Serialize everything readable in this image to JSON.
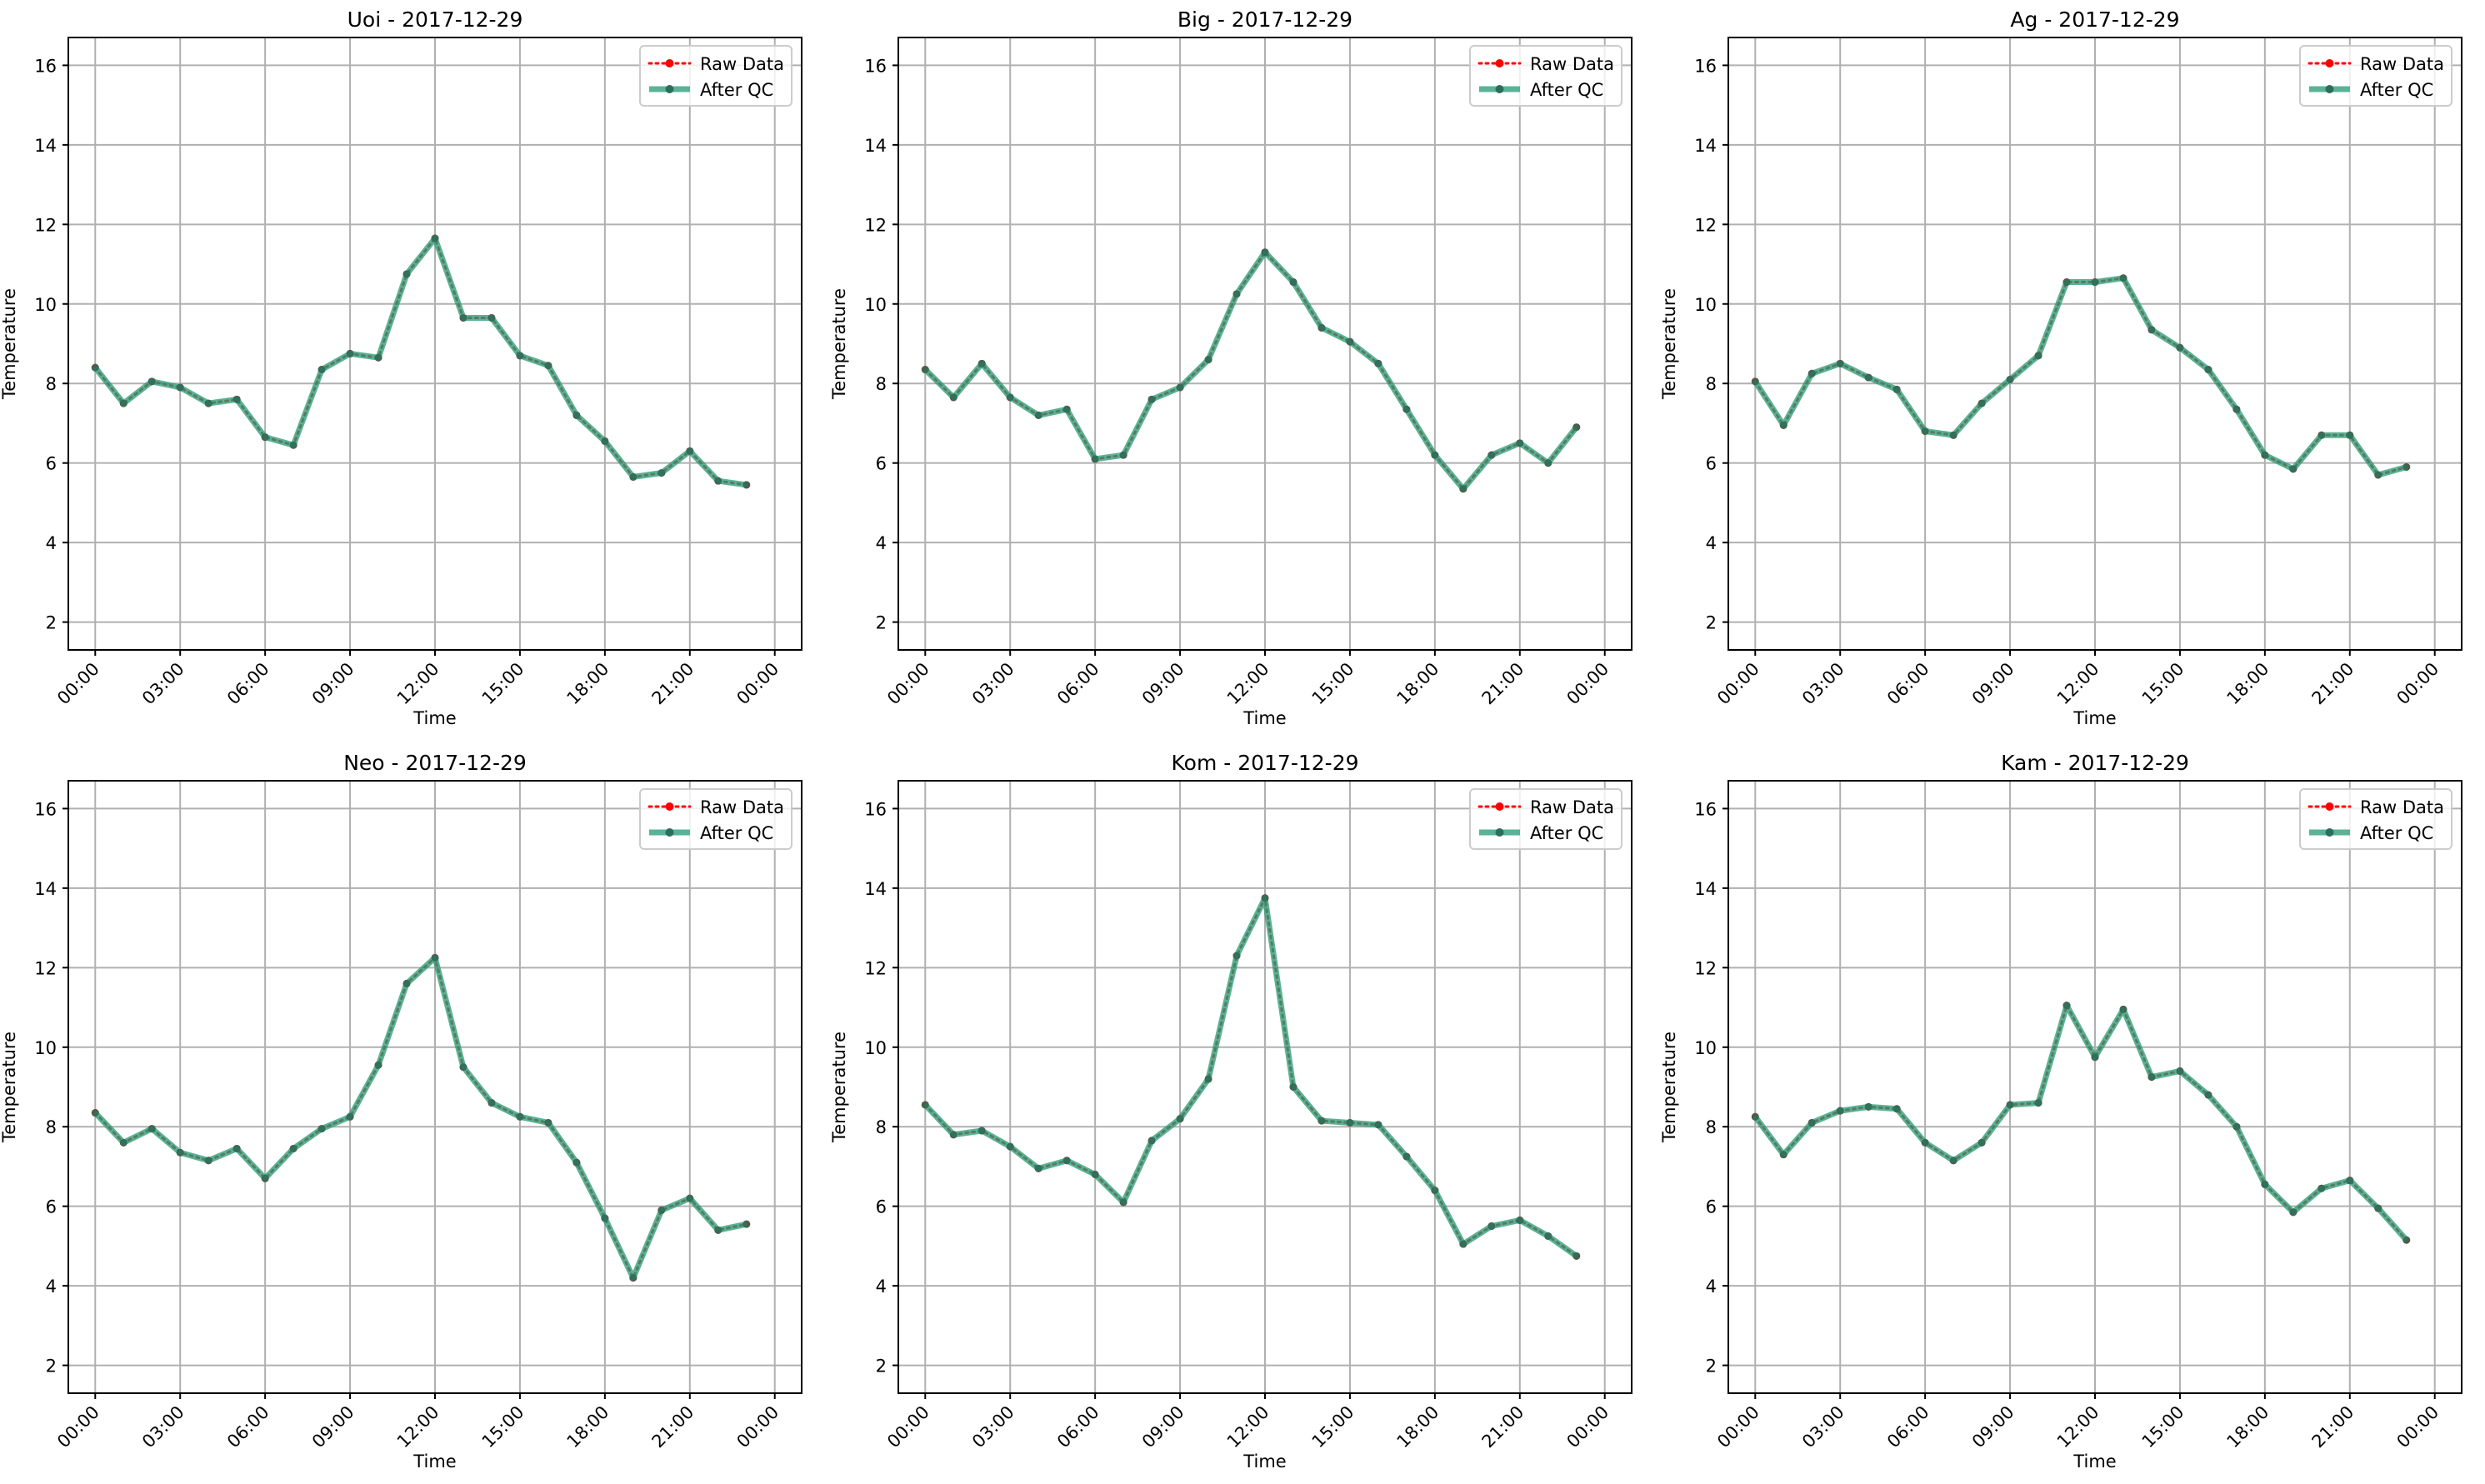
{
  "figure": {
    "x_tick_labels": [
      "00:00",
      "03:00",
      "06:00",
      "09:00",
      "12:00",
      "15:00",
      "18:00",
      "21:00",
      "00:00"
    ],
    "y_tick_labels": [
      "2",
      "4",
      "6",
      "8",
      "10",
      "12",
      "14",
      "16"
    ]
  },
  "chart_data": [
    {
      "type": "line",
      "title": "Uoi - 2017-12-29",
      "xlabel": "Time",
      "ylabel": "Temperature",
      "ylim": [
        1.3,
        16.7
      ],
      "xlim": [
        -0.95,
        24.95
      ],
      "grid": true,
      "legend_position": "top-right",
      "x_ticks": [
        "00:00",
        "03:00",
        "06:00",
        "09:00",
        "12:00",
        "15:00",
        "18:00",
        "21:00",
        "00:00"
      ],
      "x_hours": [
        0,
        1,
        2,
        3,
        4,
        5,
        6,
        7,
        8,
        9,
        10,
        11,
        12,
        13,
        14,
        15,
        16,
        17,
        18,
        19,
        20,
        21,
        22,
        23
      ],
      "series": [
        {
          "name": "Raw Data",
          "color": "#ff0000",
          "style": "dotted",
          "values": [
            8.4,
            7.5,
            8.05,
            7.9,
            7.5,
            7.6,
            6.65,
            6.45,
            8.35,
            8.75,
            8.65,
            10.75,
            11.65,
            9.65,
            9.65,
            8.7,
            8.45,
            7.2,
            6.55,
            5.65,
            5.75,
            6.3,
            5.55,
            5.45
          ]
        },
        {
          "name": "After QC",
          "color": "#2a9d7a",
          "style": "solid",
          "values": [
            8.4,
            7.5,
            8.05,
            7.9,
            7.5,
            7.6,
            6.65,
            6.45,
            8.35,
            8.75,
            8.65,
            10.75,
            11.65,
            9.65,
            9.65,
            8.7,
            8.45,
            7.2,
            6.55,
            5.65,
            5.75,
            6.3,
            5.55,
            5.45
          ]
        }
      ]
    },
    {
      "type": "line",
      "title": "Big - 2017-12-29",
      "xlabel": "Time",
      "ylabel": "Temperature",
      "ylim": [
        1.3,
        16.7
      ],
      "xlim": [
        -0.95,
        24.95
      ],
      "grid": true,
      "legend_position": "top-right",
      "x_ticks": [
        "00:00",
        "03:00",
        "06:00",
        "09:00",
        "12:00",
        "15:00",
        "18:00",
        "21:00",
        "00:00"
      ],
      "x_hours": [
        0,
        1,
        2,
        3,
        4,
        5,
        6,
        7,
        8,
        9,
        10,
        11,
        12,
        13,
        14,
        15,
        16,
        17,
        18,
        19,
        20,
        21,
        22,
        23
      ],
      "series": [
        {
          "name": "Raw Data",
          "color": "#ff0000",
          "style": "dotted",
          "values": [
            8.35,
            7.65,
            8.5,
            7.65,
            7.2,
            7.35,
            6.1,
            6.2,
            7.6,
            7.9,
            8.6,
            10.25,
            11.3,
            10.55,
            9.4,
            9.05,
            8.5,
            7.35,
            6.2,
            5.35,
            6.2,
            6.5,
            6.0,
            6.9
          ]
        },
        {
          "name": "After QC",
          "color": "#2a9d7a",
          "style": "solid",
          "values": [
            8.35,
            7.65,
            8.5,
            7.65,
            7.2,
            7.35,
            6.1,
            6.2,
            7.6,
            7.9,
            8.6,
            10.25,
            11.3,
            10.55,
            9.4,
            9.05,
            8.5,
            7.35,
            6.2,
            5.35,
            6.2,
            6.5,
            6.0,
            6.9
          ]
        }
      ]
    },
    {
      "type": "line",
      "title": "Ag - 2017-12-29",
      "xlabel": "Time",
      "ylabel": "Temperature",
      "ylim": [
        1.3,
        16.7
      ],
      "xlim": [
        -0.95,
        24.95
      ],
      "grid": true,
      "legend_position": "top-right",
      "x_ticks": [
        "00:00",
        "03:00",
        "06:00",
        "09:00",
        "12:00",
        "15:00",
        "18:00",
        "21:00",
        "00:00"
      ],
      "x_hours": [
        0,
        1,
        2,
        3,
        4,
        5,
        6,
        7,
        8,
        9,
        10,
        11,
        12,
        13,
        14,
        15,
        16,
        17,
        18,
        19,
        20,
        21,
        22,
        23
      ],
      "series": [
        {
          "name": "Raw Data",
          "color": "#ff0000",
          "style": "dotted",
          "values": [
            8.05,
            6.95,
            8.25,
            8.5,
            8.15,
            7.85,
            6.8,
            6.7,
            7.5,
            8.1,
            8.7,
            10.55,
            10.55,
            10.65,
            9.35,
            8.9,
            8.35,
            7.35,
            6.2,
            5.85,
            6.7,
            6.7,
            5.7,
            5.9
          ]
        },
        {
          "name": "After QC",
          "color": "#2a9d7a",
          "style": "solid",
          "values": [
            8.05,
            6.95,
            8.25,
            8.5,
            8.15,
            7.85,
            6.8,
            6.7,
            7.5,
            8.1,
            8.7,
            10.55,
            10.55,
            10.65,
            9.35,
            8.9,
            8.35,
            7.35,
            6.2,
            5.85,
            6.7,
            6.7,
            5.7,
            5.9
          ]
        }
      ]
    },
    {
      "type": "line",
      "title": "Neo - 2017-12-29",
      "xlabel": "Time",
      "ylabel": "Temperature",
      "ylim": [
        1.3,
        16.7
      ],
      "xlim": [
        -0.95,
        24.95
      ],
      "grid": true,
      "legend_position": "top-right",
      "x_ticks": [
        "00:00",
        "03:00",
        "06:00",
        "09:00",
        "12:00",
        "15:00",
        "18:00",
        "21:00",
        "00:00"
      ],
      "x_hours": [
        0,
        1,
        2,
        3,
        4,
        5,
        6,
        7,
        8,
        9,
        10,
        11,
        12,
        13,
        14,
        15,
        16,
        17,
        18,
        19,
        20,
        21,
        22,
        23
      ],
      "series": [
        {
          "name": "Raw Data",
          "color": "#ff0000",
          "style": "dotted",
          "values": [
            8.35,
            7.6,
            7.95,
            7.35,
            7.15,
            7.45,
            6.7,
            7.45,
            7.95,
            8.25,
            9.55,
            11.6,
            12.25,
            9.5,
            8.6,
            8.25,
            8.1,
            7.1,
            5.7,
            4.2,
            5.9,
            6.2,
            5.4,
            5.55
          ]
        },
        {
          "name": "After QC",
          "color": "#2a9d7a",
          "style": "solid",
          "values": [
            8.35,
            7.6,
            7.95,
            7.35,
            7.15,
            7.45,
            6.7,
            7.45,
            7.95,
            8.25,
            9.55,
            11.6,
            12.25,
            9.5,
            8.6,
            8.25,
            8.1,
            7.1,
            5.7,
            4.2,
            5.9,
            6.2,
            5.4,
            5.55
          ]
        }
      ]
    },
    {
      "type": "line",
      "title": "Kom - 2017-12-29",
      "xlabel": "Time",
      "ylabel": "Temperature",
      "ylim": [
        1.3,
        16.7
      ],
      "xlim": [
        -0.95,
        24.95
      ],
      "grid": true,
      "legend_position": "top-right",
      "x_ticks": [
        "00:00",
        "03:00",
        "06:00",
        "09:00",
        "12:00",
        "15:00",
        "18:00",
        "21:00",
        "00:00"
      ],
      "x_hours": [
        0,
        1,
        2,
        3,
        4,
        5,
        6,
        7,
        8,
        9,
        10,
        11,
        12,
        13,
        14,
        15,
        16,
        17,
        18,
        19,
        20,
        21,
        22,
        23
      ],
      "series": [
        {
          "name": "Raw Data",
          "color": "#ff0000",
          "style": "dotted",
          "values": [
            8.55,
            7.8,
            7.9,
            7.5,
            6.95,
            7.15,
            6.8,
            6.1,
            7.65,
            8.2,
            9.2,
            12.3,
            13.75,
            9.0,
            8.15,
            8.1,
            8.05,
            7.25,
            6.4,
            5.05,
            5.5,
            5.65,
            5.25,
            4.75
          ]
        },
        {
          "name": "After QC",
          "color": "#2a9d7a",
          "style": "solid",
          "values": [
            8.55,
            7.8,
            7.9,
            7.5,
            6.95,
            7.15,
            6.8,
            6.1,
            7.65,
            8.2,
            9.2,
            12.3,
            13.75,
            9.0,
            8.15,
            8.1,
            8.05,
            7.25,
            6.4,
            5.05,
            5.5,
            5.65,
            5.25,
            4.75
          ]
        }
      ]
    },
    {
      "type": "line",
      "title": "Kam - 2017-12-29",
      "xlabel": "Time",
      "ylabel": "Temperature",
      "ylim": [
        1.3,
        16.7
      ],
      "xlim": [
        -0.95,
        24.95
      ],
      "grid": true,
      "legend_position": "top-right",
      "x_ticks": [
        "00:00",
        "03:00",
        "06:00",
        "09:00",
        "12:00",
        "15:00",
        "18:00",
        "21:00",
        "00:00"
      ],
      "x_hours": [
        0,
        1,
        2,
        3,
        4,
        5,
        6,
        7,
        8,
        9,
        10,
        11,
        12,
        13,
        14,
        15,
        16,
        17,
        18,
        19,
        20,
        21,
        22,
        23
      ],
      "series": [
        {
          "name": "Raw Data",
          "color": "#ff0000",
          "style": "dotted",
          "values": [
            8.25,
            7.3,
            8.1,
            8.4,
            8.5,
            8.45,
            7.6,
            7.15,
            7.6,
            8.55,
            8.6,
            11.05,
            9.75,
            10.95,
            9.25,
            9.4,
            8.8,
            8.0,
            6.55,
            5.85,
            6.45,
            6.65,
            5.95,
            5.15
          ]
        },
        {
          "name": "After QC",
          "color": "#2a9d7a",
          "style": "solid",
          "values": [
            8.25,
            7.3,
            8.1,
            8.4,
            8.5,
            8.45,
            7.6,
            7.15,
            7.6,
            8.55,
            8.6,
            11.05,
            9.75,
            10.95,
            9.25,
            9.4,
            8.8,
            8.0,
            6.55,
            5.85,
            6.45,
            6.65,
            5.95,
            5.15
          ]
        }
      ]
    }
  ]
}
